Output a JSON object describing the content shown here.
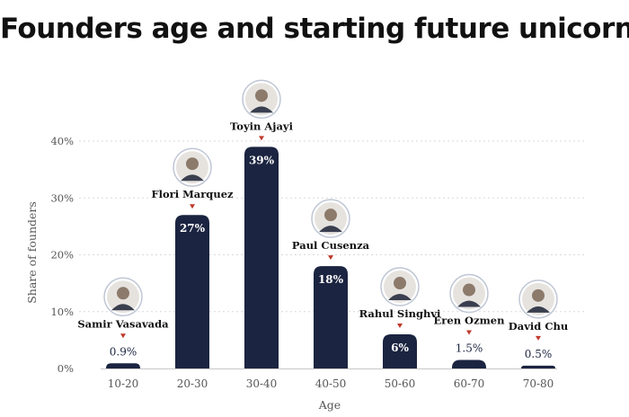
{
  "chart_data": {
    "type": "bar",
    "title": "Founders age and starting future unicorns",
    "xlabel": "Age",
    "ylabel": "Share of founders",
    "ylim": [
      0,
      40
    ],
    "yticks": [
      "0%",
      "10%",
      "20%",
      "30%",
      "40%"
    ],
    "categories": [
      "10-20",
      "20-30",
      "30-40",
      "40-50",
      "50-60",
      "60-70",
      "70-80"
    ],
    "values": [
      0.9,
      27,
      39,
      18,
      6,
      1.5,
      0.5
    ],
    "value_labels": [
      "0.9%",
      "27%",
      "39%",
      "18%",
      "6%",
      "1.5%",
      "0.5%"
    ],
    "founders": [
      "Samir Vasavada",
      "Flori Marquez",
      "Toyin Ajayi",
      "Paul Cusenza",
      "Rahul Singhvi",
      "Eren Ozmen",
      "David Chu"
    ],
    "grid": true,
    "colors": {
      "bar": "#1b2440",
      "marker": "#c0392b",
      "grid": "#d9d9d9"
    }
  }
}
